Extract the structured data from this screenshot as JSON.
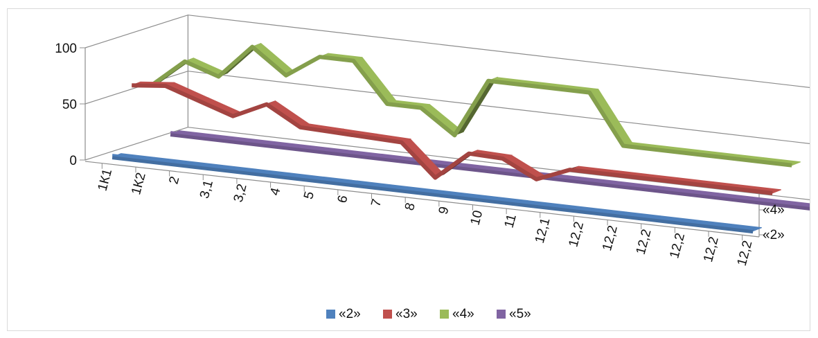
{
  "chart_data": {
    "type": "line",
    "view": "3d",
    "categories": [
      "1К1",
      "1К2",
      "2",
      "3,1",
      "3,2",
      "4",
      "5",
      "6",
      "7",
      "8",
      "9",
      "10",
      "11",
      "12,1",
      "12,2",
      "12,2",
      "12,2",
      "12,2",
      "12,2",
      "12,2"
    ],
    "y_ticks": [
      "0",
      "50",
      "100"
    ],
    "ylim": [
      0,
      100
    ],
    "depth_ticks": [
      "«2»",
      "«4»"
    ],
    "series": [
      {
        "name": "«2»",
        "color": "#4f81bd",
        "values": [
          0,
          0,
          0,
          0,
          0,
          0,
          0,
          0,
          0,
          0,
          0,
          0,
          0,
          0,
          0,
          0,
          0,
          0,
          0,
          0
        ]
      },
      {
        "name": "«3»",
        "color": "#c0504d",
        "values": [
          57,
          60,
          50,
          40,
          54,
          37,
          36,
          35,
          34,
          6,
          31,
          30,
          15,
          27,
          27,
          27,
          27,
          27,
          27,
          27
        ]
      },
      {
        "name": "«4»",
        "color": "#9bbb59",
        "values": [
          50,
          75,
          65,
          95,
          73,
          93,
          93,
          58,
          58,
          37,
          89,
          89,
          89,
          89,
          45,
          45,
          45,
          45,
          45,
          45
        ]
      },
      {
        "name": "«5»",
        "color": "#8064a2",
        "values": [
          0,
          0,
          0,
          0,
          0,
          0,
          0,
          0,
          0,
          0,
          0,
          0,
          0,
          0,
          0,
          0,
          0,
          0,
          0,
          0
        ]
      }
    ],
    "legend_position": "bottom",
    "grid": true
  }
}
